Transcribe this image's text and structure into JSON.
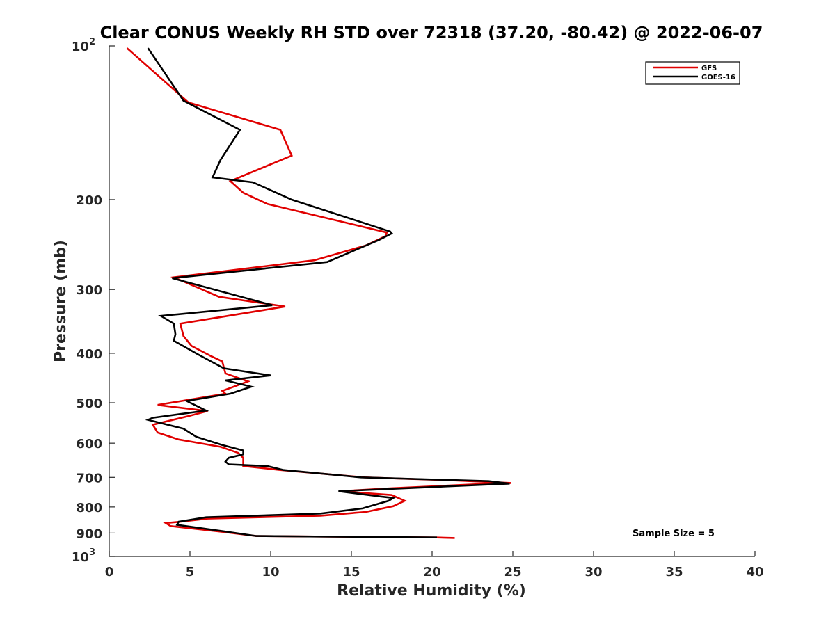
{
  "chart_data": {
    "type": "line",
    "title": "Clear CONUS Weekly RH STD over 72318 (37.20, -80.42) @ 2022-06-07",
    "xlabel": "Relative Humidity (%)",
    "ylabel": "Pressure (mb)",
    "xlim": [
      0,
      40
    ],
    "ylim": [
      100,
      1000
    ],
    "yscale": "log",
    "y_reversed": true,
    "x_ticks": [
      0,
      5,
      10,
      15,
      20,
      25,
      30,
      35,
      40
    ],
    "y_ticks": [
      {
        "value": 100,
        "label": "10",
        "sup": "2"
      },
      {
        "value": 200,
        "label": "200"
      },
      {
        "value": 300,
        "label": "300"
      },
      {
        "value": 400,
        "label": "400"
      },
      {
        "value": 500,
        "label": "500"
      },
      {
        "value": 600,
        "label": "600"
      },
      {
        "value": 700,
        "label": "700"
      },
      {
        "value": 800,
        "label": "800"
      },
      {
        "value": 900,
        "label": "900"
      },
      {
        "value": 1000,
        "label": "10",
        "sup": "3"
      }
    ],
    "grid": false,
    "legend_position": "top-right",
    "series": [
      {
        "name": "GFS",
        "color": "#e00000",
        "x": [
          21.4,
          20.3,
          9.1,
          7.0,
          3.8,
          3.5,
          4.4,
          6.1,
          13.1,
          15.9,
          17.6,
          18.3,
          17.5,
          14.3,
          17.5,
          23.6,
          24.9,
          21.5,
          15.8,
          10.6,
          8.3,
          8.3,
          8.3,
          8.0,
          6.9,
          4.3,
          3.0,
          2.7,
          5.0,
          6.1,
          3.0,
          7.2,
          7.0,
          8.6,
          7.2,
          7.0,
          6.3,
          5.1,
          4.6,
          4.4,
          10.9,
          6.8,
          4.0,
          12.7,
          15.9,
          17.1,
          17.2,
          9.8,
          8.3,
          7.5,
          11.3,
          10.6,
          4.9,
          1.1
        ],
        "y": [
          920,
          918,
          912,
          895,
          872,
          860,
          855,
          843,
          832,
          818,
          797,
          778,
          758,
          745,
          735,
          720,
          718,
          710,
          700,
          677,
          665,
          653,
          641,
          627,
          610,
          590,
          572,
          552,
          530,
          519,
          505,
          480,
          474,
          454,
          438,
          415,
          405,
          387,
          370,
          350,
          324,
          310,
          284,
          263,
          246,
          236,
          232,
          204,
          194,
          184,
          164,
          146,
          129,
          101
        ]
      },
      {
        "name": "GOES-16",
        "color": "#000000",
        "x": [
          20.3,
          9.1,
          7.1,
          4.2,
          4.3,
          6.0,
          13.1,
          15.7,
          17.3,
          17.6,
          16.8,
          14.2,
          24.8,
          23.5,
          15.6,
          10.8,
          9.8,
          7.4,
          7.2,
          7.4,
          8.3,
          8.3,
          7.0,
          5.4,
          4.6,
          2.4,
          2.7,
          6.0,
          4.8,
          7.5,
          8.8,
          7.2,
          10.0,
          7.1,
          5.5,
          4.0,
          4.1,
          4.0,
          3.2,
          10.1,
          7.0,
          3.9,
          13.5,
          16.7,
          17.5,
          17.4,
          11.3,
          8.9,
          6.4,
          6.9,
          8.1,
          4.6,
          2.4
        ],
        "y": [
          918,
          912,
          893,
          867,
          855,
          838,
          824,
          805,
          778,
          768,
          763,
          745,
          720,
          712,
          700,
          677,
          665,
          660,
          652,
          641,
          631,
          620,
          605,
          583,
          562,
          540,
          535,
          518,
          496,
          480,
          465,
          452,
          442,
          428,
          402,
          378,
          367,
          350,
          338,
          322,
          303,
          285,
          265,
          240,
          233,
          231,
          200,
          185,
          181,
          167,
          146,
          128,
          101
        ]
      }
    ],
    "annotation": "Sample Size = 5"
  }
}
